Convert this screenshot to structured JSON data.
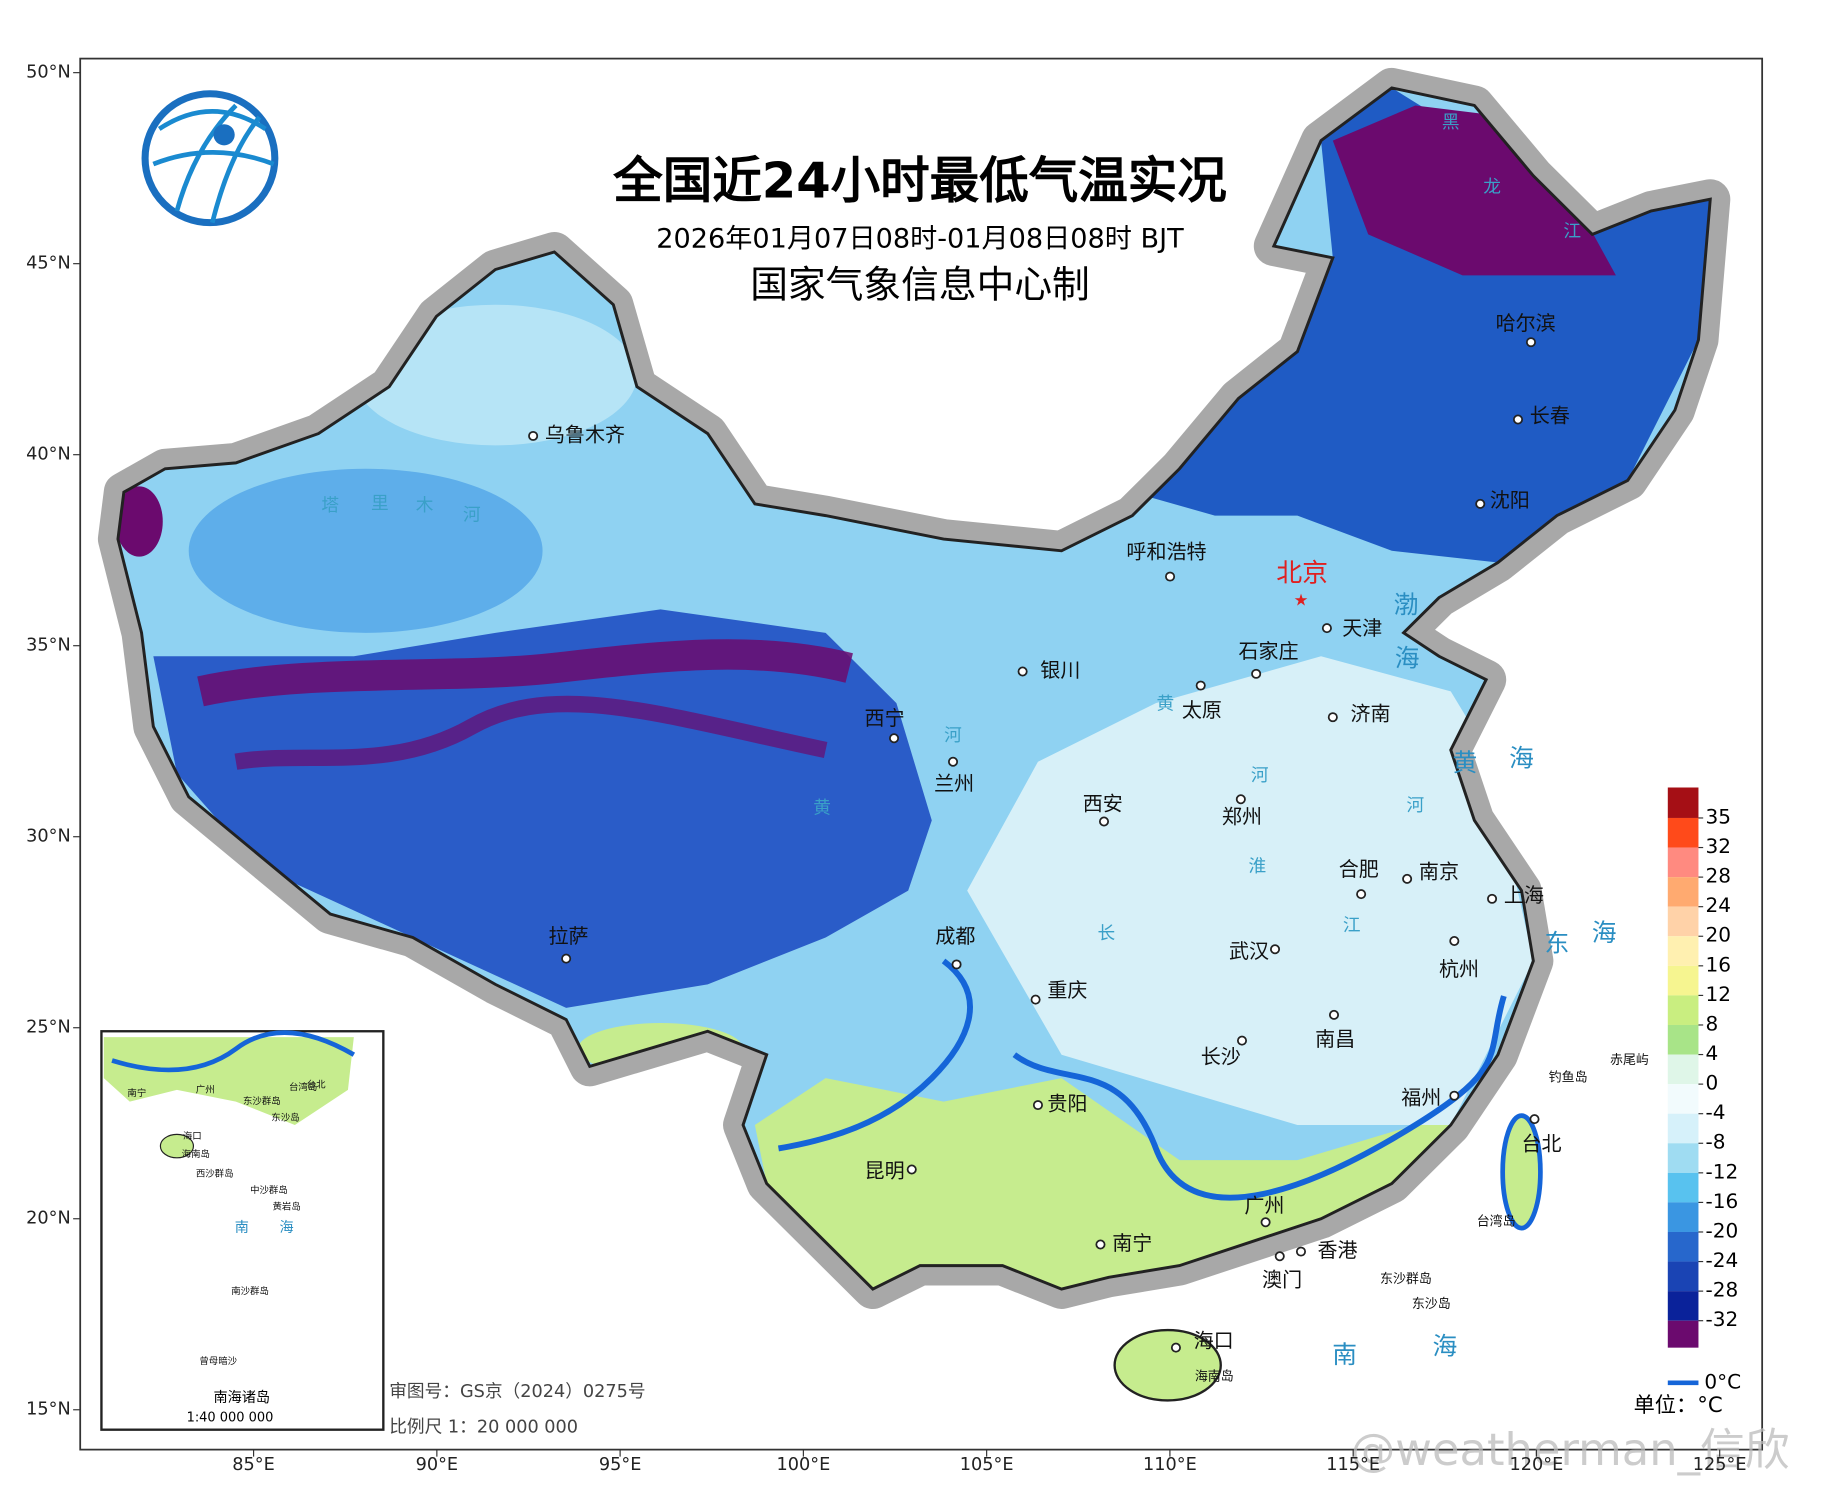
{
  "header": {
    "title": "全国近24小时最低气温实况",
    "period": "2026年01月07日08时-01月08日08时 BJT",
    "producer": "国家气象信息中心制"
  },
  "lat_ticks": [
    {
      "value": 50,
      "label": "50°N"
    },
    {
      "value": 45,
      "label": "45°N"
    },
    {
      "value": 40,
      "label": "40°N"
    },
    {
      "value": 35,
      "label": "35°N"
    },
    {
      "value": 30,
      "label": "30°N"
    },
    {
      "value": 25,
      "label": "25°N"
    },
    {
      "value": 20,
      "label": "20°N"
    },
    {
      "value": 15,
      "label": "15°N"
    }
  ],
  "lon_ticks": [
    {
      "value": 85,
      "label": "85°E"
    },
    {
      "value": 90,
      "label": "90°E"
    },
    {
      "value": 95,
      "label": "95°E"
    },
    {
      "value": 100,
      "label": "100°E"
    },
    {
      "value": 105,
      "label": "105°E"
    },
    {
      "value": 110,
      "label": "110°E"
    },
    {
      "value": 115,
      "label": "115°E"
    },
    {
      "value": 120,
      "label": "120°E"
    },
    {
      "value": 125,
      "label": "125°E"
    }
  ],
  "capital": "北京",
  "cities": [
    "乌鲁木齐",
    "哈尔滨",
    "长春",
    "沈阳",
    "呼和浩特",
    "天津",
    "石家庄",
    "银川",
    "太原",
    "济南",
    "西宁",
    "兰州",
    "西安",
    "郑州",
    "合肥",
    "南京",
    "上海",
    "拉萨",
    "成都",
    "重庆",
    "武汉",
    "杭州",
    "南昌",
    "长沙",
    "福州",
    "贵阳",
    "台北",
    "昆明",
    "南宁",
    "广州",
    "香港",
    "澳门",
    "海口"
  ],
  "islands": [
    "赤尾屿",
    "钓鱼岛",
    "台湾岛",
    "东沙群岛",
    "东沙岛",
    "海南岛"
  ],
  "seas": [
    "渤",
    "海",
    "黄",
    "海",
    "东",
    "海",
    "南",
    "海"
  ],
  "rivers": [
    "黑",
    "龙",
    "江",
    "塔",
    "里",
    "木",
    "河",
    "黄",
    "河",
    "黄",
    "河",
    "淮",
    "江",
    "长",
    "河"
  ],
  "inset": {
    "labels": [
      "南宁",
      "广州",
      "台北",
      "海口",
      "海南岛",
      "东沙群岛",
      "台湾岛",
      "东沙岛",
      "西沙群岛",
      "中沙群岛",
      "黄岩岛",
      "南",
      "海",
      "南沙群岛",
      "曾母暗沙"
    ],
    "title": "南海诸岛",
    "scale": "1:40 000 000"
  },
  "legend": {
    "ticks": [
      35,
      32,
      28,
      24,
      20,
      16,
      12,
      8,
      4,
      0,
      -4,
      -8,
      -12,
      -16,
      -20,
      -24,
      -28,
      -32
    ],
    "colors": [
      "#a50f15",
      "#ff4a1a",
      "#ff8a80",
      "#ffaa70",
      "#ffd2a8",
      "#fff0b0",
      "#f6f590",
      "#c9ee80",
      "#a8e488",
      "#dff6e8",
      "#f2fbfd",
      "#d6f1fa",
      "#9fdcf2",
      "#58c2ef",
      "#3a96e2",
      "#2767cc",
      "#1a44b4",
      "#0a229a",
      "#6b0a6e"
    ],
    "zero_line": "0°C",
    "unit": "单位：°C"
  },
  "footer": {
    "review_no": "审图号：GS京（2024）0275号",
    "scale": "比例尺 1：20 000 000"
  },
  "watermark": "@weatherman_信欣"
}
